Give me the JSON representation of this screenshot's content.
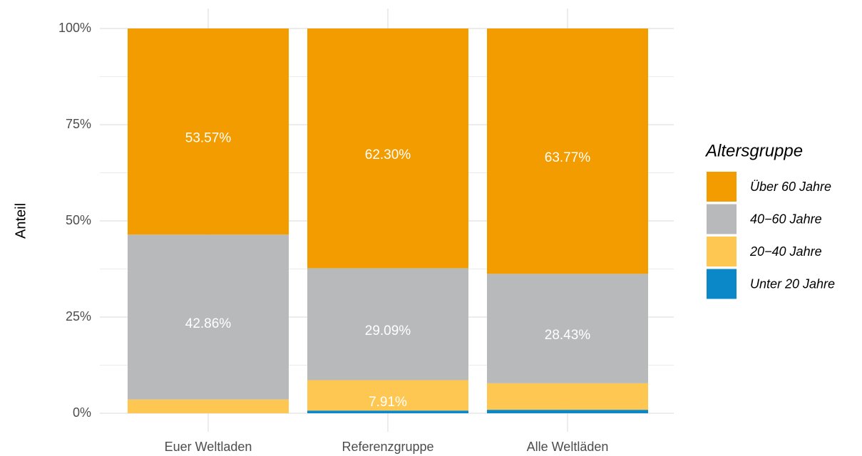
{
  "chart_data": {
    "type": "stacked_bar",
    "y_label": "Anteil",
    "categories": [
      "Euer Weltladen",
      "Referenzgruppe",
      "Alle Weltläden"
    ],
    "legend_title": "Altersgruppe",
    "legend_position": "right",
    "grid": true,
    "ylim": [
      0,
      100
    ],
    "yticks": [
      {
        "value": 0,
        "label": "0%"
      },
      {
        "value": 25,
        "label": "25%"
      },
      {
        "value": 50,
        "label": "50%"
      },
      {
        "value": 75,
        "label": "75%"
      },
      {
        "value": 100,
        "label": "100%"
      }
    ],
    "yminor": [
      12.5,
      37.5,
      62.5,
      87.5
    ],
    "series": [
      {
        "name": "Unter 20 Jahre",
        "color": "#0a88c8",
        "values": [
          0,
          0.7,
          0.9
        ],
        "value_labels": [
          null,
          null,
          null
        ]
      },
      {
        "name": "20−40 Jahre",
        "color": "#fec752",
        "values": [
          3.57,
          7.91,
          6.9
        ],
        "value_labels": [
          null,
          "7.91%",
          null
        ]
      },
      {
        "name": "40−60 Jahre",
        "color": "#b8b9bb",
        "values": [
          42.86,
          29.09,
          28.43
        ],
        "value_labels": [
          "42.86%",
          "29.09%",
          "28.43%"
        ]
      },
      {
        "name": "Über 60 Jahre",
        "color": "#f39c00",
        "values": [
          53.57,
          62.3,
          63.77
        ],
        "value_labels": [
          "53.57%",
          "62.30%",
          "63.77%"
        ]
      }
    ]
  }
}
